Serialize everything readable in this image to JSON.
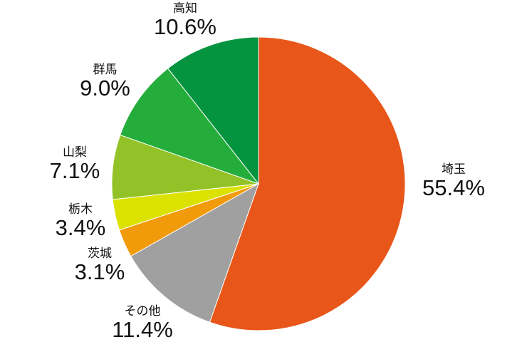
{
  "chart_data": {
    "type": "pie",
    "title": "",
    "slices": [
      {
        "name": "埼玉",
        "value": 55.4,
        "label": "55.4%",
        "color": "#e8561a"
      },
      {
        "name": "その他",
        "value": 11.4,
        "label": "11.4%",
        "color": "#a0a0a0"
      },
      {
        "name": "茨城",
        "value": 3.1,
        "label": "3.1%",
        "color": "#f19a0a"
      },
      {
        "name": "栃木",
        "value": 3.4,
        "label": "3.4%",
        "color": "#dce200"
      },
      {
        "name": "山梨",
        "value": 7.1,
        "label": "7.1%",
        "color": "#92c227"
      },
      {
        "name": "群馬",
        "value": 9.0,
        "label": "9.0%",
        "color": "#24ad3a"
      },
      {
        "name": "高知",
        "value": 10.6,
        "label": "10.6%",
        "color": "#04933e"
      }
    ],
    "start": "12 o'clock",
    "direction": "clockwise",
    "legend": "none"
  }
}
